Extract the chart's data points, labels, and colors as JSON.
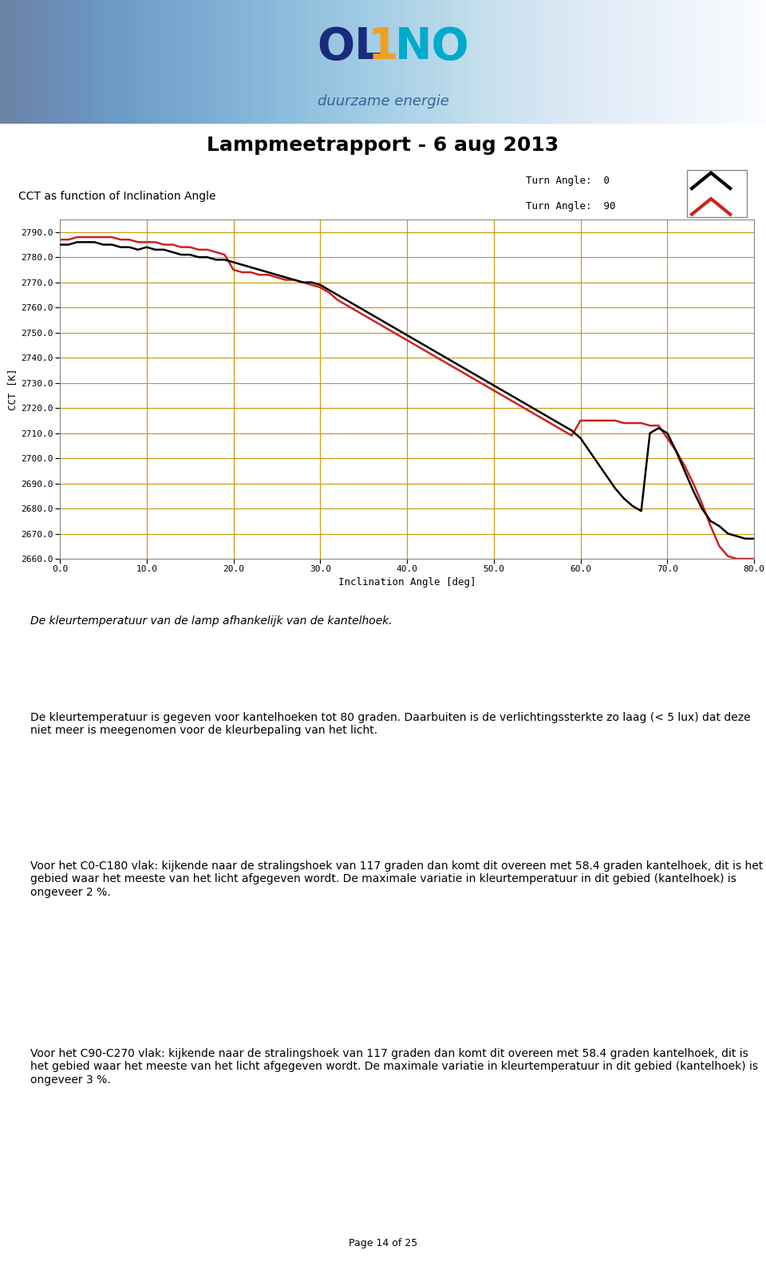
{
  "title": "Lampmeetrapport - 6 aug 2013",
  "chart_title": "CCT as function of Inclination Angle",
  "xlabel": "Inclination Angle [deg]",
  "ylabel": "CCT [K]",
  "legend_entries": [
    "Turn Angle:  0",
    "Turn Angle:  90"
  ],
  "legend_colors": [
    "#000000",
    "#cc2222"
  ],
  "xlim": [
    0.0,
    80.0
  ],
  "ylim": [
    2660.0,
    2795.0
  ],
  "xticks": [
    0.0,
    10.0,
    20.0,
    30.0,
    40.0,
    50.0,
    60.0,
    70.0,
    80.0
  ],
  "yticks": [
    2660.0,
    2670.0,
    2680.0,
    2690.0,
    2700.0,
    2710.0,
    2720.0,
    2730.0,
    2740.0,
    2750.0,
    2760.0,
    2770.0,
    2780.0,
    2790.0
  ],
  "grid_color": "#c8960a",
  "plot_bg": "#ffffff",
  "outer_bg": "#c0c0c0",
  "header_bg": "#aacce0",
  "black_x": [
    0,
    1,
    2,
    3,
    4,
    5,
    6,
    7,
    8,
    9,
    10,
    11,
    12,
    13,
    14,
    15,
    16,
    17,
    18,
    19,
    20,
    21,
    22,
    23,
    24,
    25,
    26,
    27,
    28,
    29,
    30,
    31,
    32,
    33,
    34,
    35,
    36,
    37,
    38,
    39,
    40,
    41,
    42,
    43,
    44,
    45,
    46,
    47,
    48,
    49,
    50,
    51,
    52,
    53,
    54,
    55,
    56,
    57,
    58,
    59,
    60,
    61,
    62,
    63,
    64,
    65,
    66,
    67,
    68,
    69,
    70,
    71,
    72,
    73,
    74,
    75,
    76,
    77,
    78,
    79,
    80
  ],
  "black_y": [
    2785,
    2785,
    2786,
    2786,
    2786,
    2785,
    2785,
    2784,
    2784,
    2783,
    2784,
    2783,
    2783,
    2782,
    2781,
    2781,
    2780,
    2780,
    2779,
    2779,
    2778,
    2777,
    2776,
    2775,
    2774,
    2773,
    2772,
    2771,
    2770,
    2770,
    2769,
    2767,
    2765,
    2763,
    2761,
    2759,
    2757,
    2755,
    2753,
    2751,
    2749,
    2747,
    2745,
    2743,
    2741,
    2739,
    2737,
    2735,
    2733,
    2731,
    2729,
    2727,
    2725,
    2723,
    2721,
    2719,
    2717,
    2715,
    2713,
    2711,
    2708,
    2703,
    2698,
    2693,
    2688,
    2684,
    2681,
    2679,
    2710,
    2712,
    2710,
    2703,
    2695,
    2687,
    2680,
    2675,
    2673,
    2670,
    2669,
    2668,
    2668
  ],
  "red_x": [
    0,
    1,
    2,
    3,
    4,
    5,
    6,
    7,
    8,
    9,
    10,
    11,
    12,
    13,
    14,
    15,
    16,
    17,
    18,
    19,
    20,
    21,
    22,
    23,
    24,
    25,
    26,
    27,
    28,
    29,
    30,
    31,
    32,
    33,
    34,
    35,
    36,
    37,
    38,
    39,
    40,
    41,
    42,
    43,
    44,
    45,
    46,
    47,
    48,
    49,
    50,
    51,
    52,
    53,
    54,
    55,
    56,
    57,
    58,
    59,
    60,
    61,
    62,
    63,
    64,
    65,
    66,
    67,
    68,
    69,
    70,
    71,
    72,
    73,
    74,
    75,
    76,
    77,
    78,
    79,
    80
  ],
  "red_y": [
    2787,
    2787,
    2788,
    2788,
    2788,
    2788,
    2788,
    2787,
    2787,
    2786,
    2786,
    2786,
    2785,
    2785,
    2784,
    2784,
    2783,
    2783,
    2782,
    2781,
    2775,
    2774,
    2774,
    2773,
    2773,
    2772,
    2771,
    2771,
    2770,
    2769,
    2768,
    2766,
    2763,
    2761,
    2759,
    2757,
    2755,
    2753,
    2751,
    2749,
    2747,
    2745,
    2743,
    2741,
    2739,
    2737,
    2735,
    2733,
    2731,
    2729,
    2727,
    2725,
    2723,
    2721,
    2719,
    2717,
    2715,
    2713,
    2711,
    2709,
    2715,
    2715,
    2715,
    2715,
    2715,
    2714,
    2714,
    2714,
    2713,
    2713,
    2708,
    2703,
    2697,
    2690,
    2682,
    2673,
    2665,
    2661,
    2660,
    2660,
    2660
  ],
  "text_blocks": [
    {
      "text": "De kleurtemperatuur van de lamp afhankelijk van de kantelhoek.",
      "italic": true,
      "bold": false,
      "indent": false
    },
    {
      "text": "De kleurtemperatuur is gegeven voor kantelhoeken tot 80 graden. Daarbuiten is de verlichtingssterkte zo laag (< 5 lux) dat deze niet meer is meegenomen voor de kleurbepaling van het licht.",
      "italic": false,
      "bold": false,
      "indent": false
    },
    {
      "text": "Voor het C0-C180 vlak: kijkende naar de stralingshoek van 117 graden dan komt dit overeen met 58.4 graden kantelhoek, dit is het gebied waar het meeste van het licht afgegeven wordt. De maximale variatie in kleurtemperatuur in dit gebied (kantelhoek) is ongeveer 2 %.",
      "italic": false,
      "bold": false,
      "indent": false
    },
    {
      "text": "Voor het C90-C270 vlak: kijkende naar de stralingshoek van 117 graden dan komt dit overeen met 58.4 graden kantelhoek, dit is het gebied waar het meeste van het licht afgegeven wordt. De maximale variatie in kleurtemperatuur in dit gebied (kantelhoek) is ongeveer 3 %.",
      "italic": false,
      "bold": false,
      "indent": false
    }
  ],
  "page_label": "Page 14 of 25",
  "fig_width": 9.6,
  "fig_height": 15.81,
  "dpi": 100
}
